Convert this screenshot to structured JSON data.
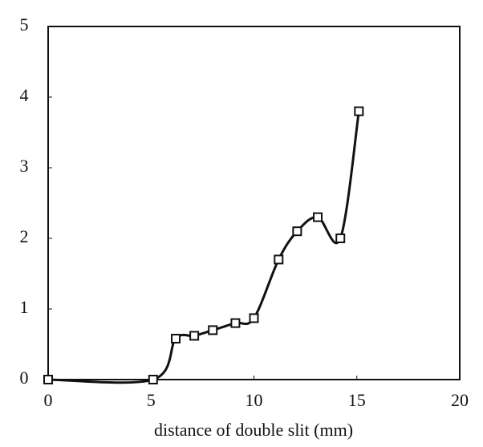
{
  "chart_data": {
    "type": "line",
    "x_label": "distance of double slit (mm)",
    "x": [
      0,
      5.1,
      6.2,
      7.1,
      8.0,
      9.1,
      10.0,
      11.2,
      12.1,
      13.1,
      14.2,
      15.1
    ],
    "series": [
      {
        "color": "#111111",
        "values": [
          0,
          0,
          0.58,
          0.62,
          0.7,
          0.8,
          0.87,
          1.7,
          2.1,
          2.3,
          2.0,
          3.8
        ]
      }
    ],
    "xlim": [
      0,
      20
    ],
    "xticks": [
      0,
      5,
      10,
      15,
      20
    ],
    "ylim": [
      0,
      5
    ],
    "yticks": [
      0,
      1,
      2,
      3,
      4,
      5
    ],
    "grid": false
  }
}
